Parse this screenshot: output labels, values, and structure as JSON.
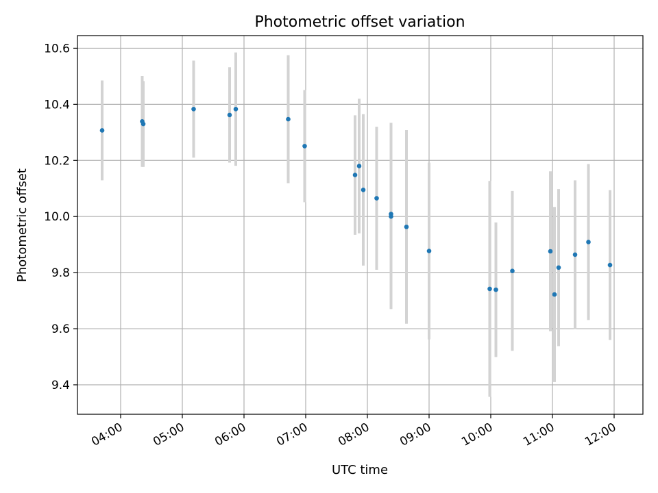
{
  "chart_data": {
    "type": "scatter",
    "title": "Photometric offset variation",
    "xlabel": "UTC time",
    "ylabel": "Photometric offset",
    "x_unit": "UTC time (HH:MM)",
    "xlim": [
      "03:18",
      "12:28"
    ],
    "ylim": [
      9.295,
      10.645
    ],
    "x_ticks": [
      "04:00",
      "05:00",
      "06:00",
      "07:00",
      "08:00",
      "09:00",
      "10:00",
      "11:00",
      "12:00"
    ],
    "y_ticks": [
      9.4,
      9.6,
      9.8,
      10.0,
      10.2,
      10.4,
      10.6
    ],
    "y_tick_labels": [
      "9.4",
      "9.6",
      "9.8",
      "10.0",
      "10.2",
      "10.4",
      "10.6"
    ],
    "grid": true,
    "colors": {
      "points": "#1f77b4",
      "errorbars": "#d3d3d3",
      "grid": "#b0b0b0"
    },
    "points": [
      {
        "x": "03:42",
        "y": 10.307,
        "yerr": 0.178
      },
      {
        "x": "04:21",
        "y": 10.339,
        "yerr": 0.162
      },
      {
        "x": "04:22",
        "y": 10.33,
        "yerr": 0.153
      },
      {
        "x": "05:11",
        "y": 10.383,
        "yerr": 0.173
      },
      {
        "x": "05:46",
        "y": 10.362,
        "yerr": 0.17
      },
      {
        "x": "05:52",
        "y": 10.383,
        "yerr": 0.202
      },
      {
        "x": "06:43",
        "y": 10.347,
        "yerr": 0.228
      },
      {
        "x": "06:59",
        "y": 10.251,
        "yerr": 0.2
      },
      {
        "x": "07:48",
        "y": 10.148,
        "yerr": 0.213
      },
      {
        "x": "07:52",
        "y": 10.18,
        "yerr": 0.24
      },
      {
        "x": "07:56",
        "y": 10.095,
        "yerr": 0.27
      },
      {
        "x": "08:09",
        "y": 10.065,
        "yerr": 0.255
      },
      {
        "x": "08:23",
        "y": 10.009,
        "yerr": 0.325
      },
      {
        "x": "08:23",
        "y": 10.0,
        "yerr": 0.33
      },
      {
        "x": "08:38",
        "y": 9.963,
        "yerr": 0.345
      },
      {
        "x": "09:00",
        "y": 9.877,
        "yerr": 0.315
      },
      {
        "x": "09:59",
        "y": 9.742,
        "yerr": 0.385
      },
      {
        "x": "10:05",
        "y": 9.739,
        "yerr": 0.24
      },
      {
        "x": "10:21",
        "y": 9.806,
        "yerr": 0.285
      },
      {
        "x": "10:58",
        "y": 9.876,
        "yerr": 0.285
      },
      {
        "x": "11:02",
        "y": 9.722,
        "yerr": 0.312
      },
      {
        "x": "11:06",
        "y": 9.818,
        "yerr": 0.28
      },
      {
        "x": "11:22",
        "y": 9.864,
        "yerr": 0.265
      },
      {
        "x": "11:35",
        "y": 9.909,
        "yerr": 0.278
      },
      {
        "x": "11:56",
        "y": 9.827,
        "yerr": 0.267
      }
    ]
  }
}
